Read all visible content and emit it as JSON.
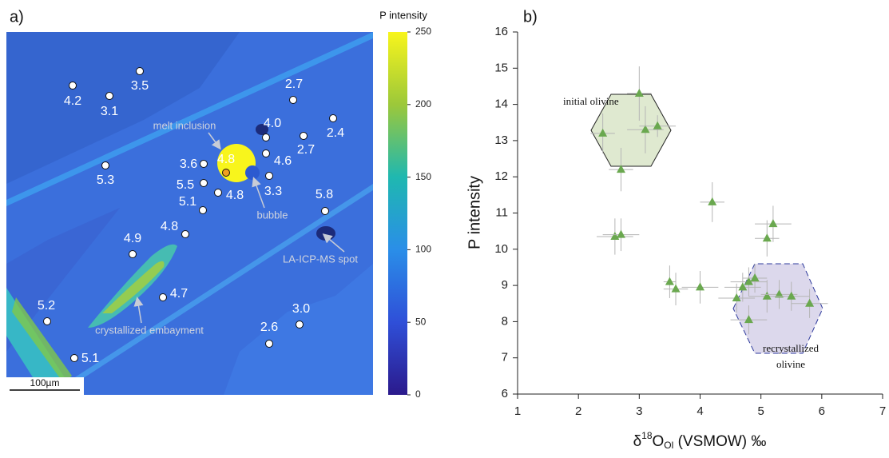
{
  "panel_a": {
    "label": "a)",
    "scale_bar": "100µm",
    "colorbar": {
      "title": "P intensity",
      "range": [
        0,
        250
      ],
      "ticks": [
        0,
        50,
        100,
        150,
        200,
        250
      ]
    },
    "spots": [
      "4.2",
      "3.5",
      "3.1",
      "2.7",
      "4.0",
      "2.4",
      "2.7",
      "4.6",
      "3.3",
      "5.3",
      "3.6",
      "4.8",
      "5.5",
      "4.8",
      "5.1",
      "5.8",
      "4.8",
      "4.9",
      "4.7",
      "5.2",
      "3.0",
      "2.6",
      "5.1"
    ],
    "annotations": [
      "melt inclusion",
      "bubble",
      "LA-ICP-MS spot",
      "crystallized embayment"
    ]
  },
  "chart_data": {
    "type": "scatter",
    "panel_label": "b)",
    "x_label": {
      "pre": "δ",
      "sup": "18",
      "mid": "O",
      "sub": "Ol",
      "post": " (VSMOW) ‰"
    },
    "y_label": "P intensity",
    "xlim": [
      1,
      7
    ],
    "ylim": [
      6,
      16
    ],
    "xticks": [
      1,
      2,
      3,
      4,
      5,
      6,
      7
    ],
    "yticks": [
      6,
      7,
      8,
      9,
      10,
      11,
      12,
      13,
      14,
      15,
      16
    ],
    "series": [
      {
        "color": "#6aa84f",
        "x": [
          2.4,
          3.0,
          3.1,
          3.3,
          2.7,
          2.6,
          2.7,
          4.2,
          5.2,
          5.1,
          3.5,
          3.6,
          4.0,
          4.6,
          4.7,
          4.8,
          4.9,
          5.1,
          5.3,
          5.5,
          5.8,
          4.8
        ],
        "y": [
          13.2,
          14.3,
          13.3,
          13.4,
          12.2,
          10.35,
          10.4,
          11.3,
          10.7,
          10.3,
          9.1,
          8.9,
          8.95,
          8.65,
          8.95,
          9.1,
          9.2,
          8.7,
          8.75,
          8.7,
          8.5,
          8.05
        ],
        "xerr": [
          0.2,
          0.2,
          0.3,
          0.3,
          0.2,
          0.3,
          0.3,
          0.2,
          0.3,
          0.2,
          0.1,
          0.2,
          0.3,
          0.3,
          0.3,
          0.3,
          0.2,
          0.3,
          0.3,
          0.3,
          0.3,
          0.3
        ],
        "yerr": [
          0.55,
          0.75,
          0.65,
          0.3,
          0.6,
          0.5,
          0.45,
          0.55,
          0.5,
          0.5,
          0.45,
          0.45,
          0.45,
          0.4,
          0.4,
          0.4,
          0.4,
          0.45,
          0.4,
          0.4,
          0.4,
          0.4
        ]
      }
    ],
    "region_labels": {
      "initial": "initial olivine",
      "recrystallized": [
        "recrystallized",
        "olivine"
      ]
    }
  }
}
